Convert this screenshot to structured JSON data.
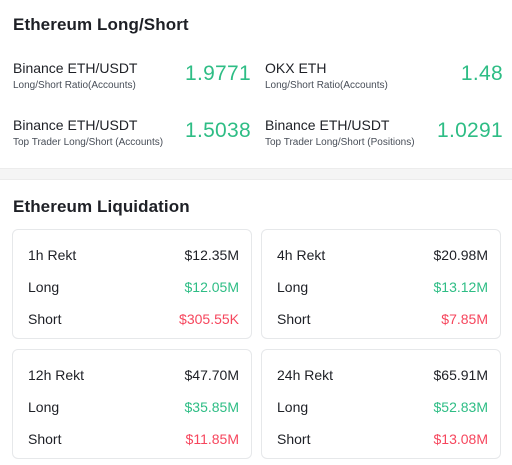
{
  "long_short": {
    "title": "Ethereum Long/Short",
    "items": [
      {
        "name": "Binance ETH/USDT",
        "sub": "Long/Short Ratio(Accounts)",
        "value": "1.9771"
      },
      {
        "name": "OKX ETH",
        "sub": "Long/Short Ratio(Accounts)",
        "value": "1.48"
      },
      {
        "name": "Binance ETH/USDT",
        "sub": "Top Trader Long/Short (Accounts)",
        "value": "1.5038"
      },
      {
        "name": "Binance ETH/USDT",
        "sub": "Top Trader Long/Short (Positions)",
        "value": "1.0291"
      }
    ]
  },
  "liquidation": {
    "title": "Ethereum Liquidation",
    "cards": [
      {
        "period": "1h Rekt",
        "total": "$12.35M",
        "long_label": "Long",
        "long": "$12.05M",
        "short_label": "Short",
        "short": "$305.55K"
      },
      {
        "period": "4h Rekt",
        "total": "$20.98M",
        "long_label": "Long",
        "long": "$13.12M",
        "short_label": "Short",
        "short": "$7.85M"
      },
      {
        "period": "12h Rekt",
        "total": "$47.70M",
        "long_label": "Long",
        "long": "$35.85M",
        "short_label": "Short",
        "short": "$11.85M"
      },
      {
        "period": "24h Rekt",
        "total": "$65.91M",
        "long_label": "Long",
        "long": "$52.83M",
        "short_label": "Short",
        "short": "$13.08M"
      }
    ]
  },
  "colors": {
    "long": "#2ebd85",
    "short": "#f6465d",
    "text": "#1e2026"
  }
}
